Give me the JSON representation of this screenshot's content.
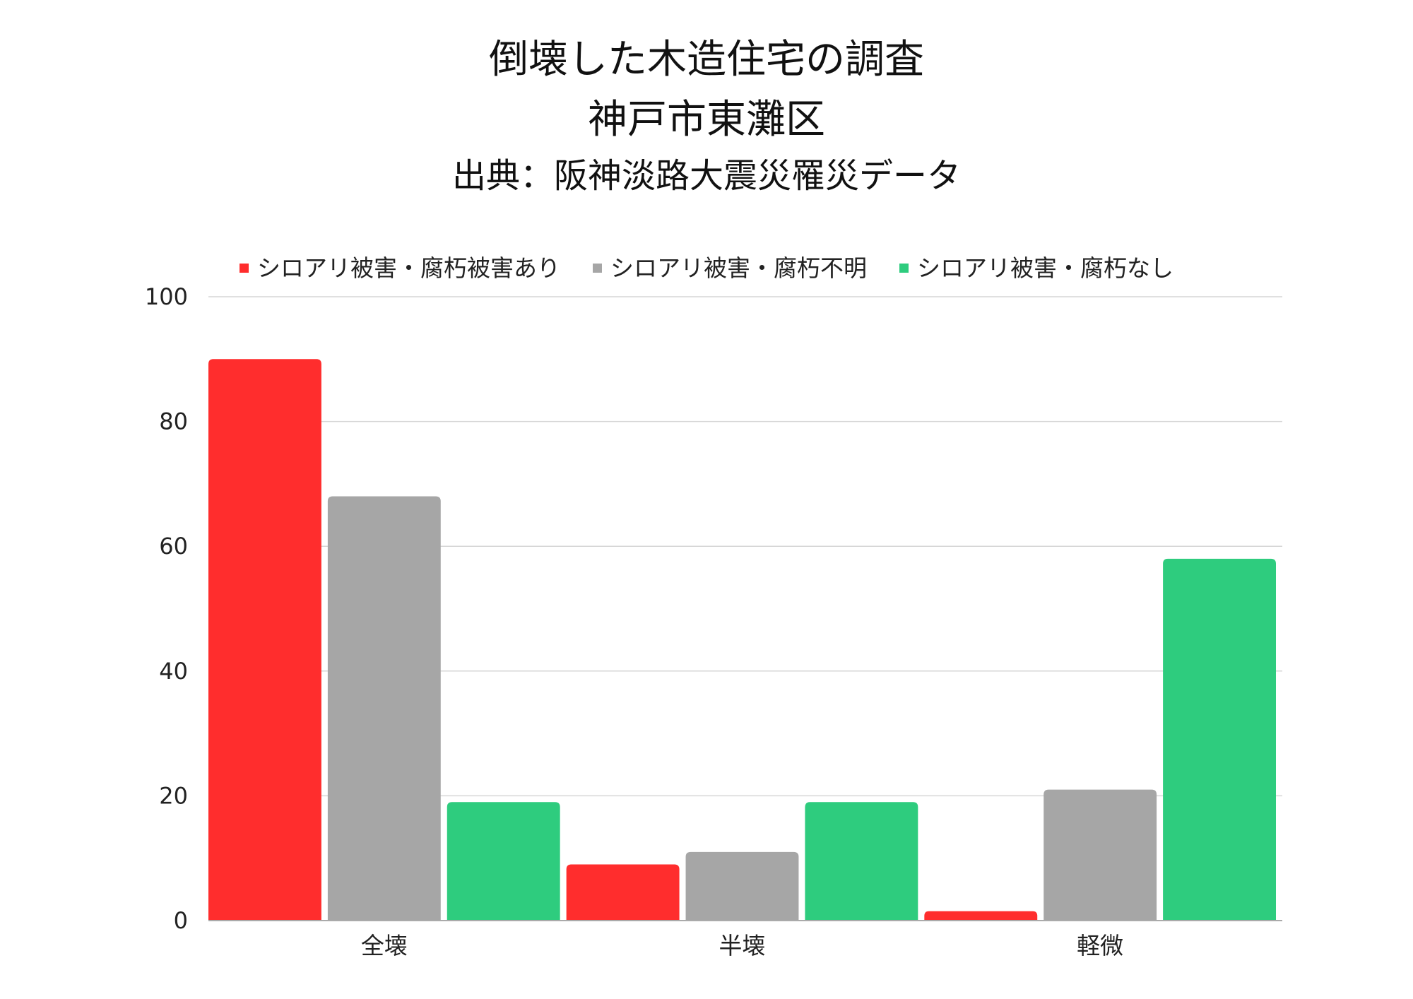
{
  "chart_data": {
    "type": "bar",
    "title": [
      "倒壊した木造住宅の調査",
      "神戸市東灘区"
    ],
    "subtitle": "出典：阪神淡路大震災罹災データ",
    "categories": [
      "全壊",
      "半壊",
      "軽微"
    ],
    "series": [
      {
        "name": "シロアリ被害・腐朽被害あり",
        "color": "#ff2d2d",
        "values": [
          90,
          9,
          1.5
        ]
      },
      {
        "name": "シロアリ被害・腐朽不明",
        "color": "#a6a6a6",
        "values": [
          68,
          11,
          21
        ]
      },
      {
        "name": "シロアリ被害・腐朽なし",
        "color": "#2ecc7e",
        "values": [
          19,
          19,
          58
        ]
      }
    ],
    "ylim": [
      0,
      100
    ],
    "yticks": [
      0,
      20,
      40,
      60,
      80,
      100
    ],
    "grid": true,
    "legend_position": "top"
  }
}
